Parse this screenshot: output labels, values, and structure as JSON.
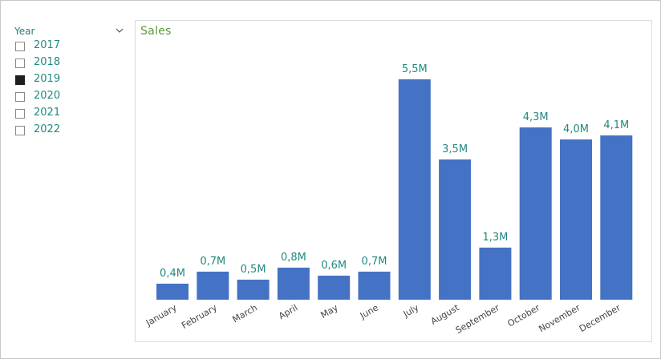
{
  "slicer": {
    "title": "Year",
    "chevron_icon": "chevron-down-icon",
    "items": [
      {
        "label": "2017",
        "checked": false
      },
      {
        "label": "2018",
        "checked": false
      },
      {
        "label": "2019",
        "checked": true
      },
      {
        "label": "2020",
        "checked": false
      },
      {
        "label": "2021",
        "checked": false
      },
      {
        "label": "2022",
        "checked": false
      }
    ]
  },
  "colors": {
    "bar": "#4472c4",
    "data_label": "#1f8a80",
    "tick_label": "#444444",
    "title": "#5a9a3c",
    "slicer_text": "#1f8a80"
  },
  "chart_data": {
    "type": "bar",
    "title": "Sales",
    "xlabel": "",
    "ylabel": "",
    "grid": false,
    "legend": "none",
    "ylim": [
      0,
      6
    ],
    "categories": [
      "January",
      "February",
      "March",
      "April",
      "May",
      "June",
      "July",
      "August",
      "September",
      "October",
      "November",
      "December"
    ],
    "values": [
      0.4,
      0.7,
      0.5,
      0.8,
      0.6,
      0.7,
      5.5,
      3.5,
      1.3,
      4.3,
      4.0,
      4.1
    ],
    "data_labels": [
      "0,4M",
      "0,7M",
      "0,5M",
      "0,8M",
      "0,6M",
      "0,7M",
      "5,5M",
      "3,5M",
      "1,3M",
      "4,3M",
      "4,0M",
      "4,1M"
    ]
  }
}
